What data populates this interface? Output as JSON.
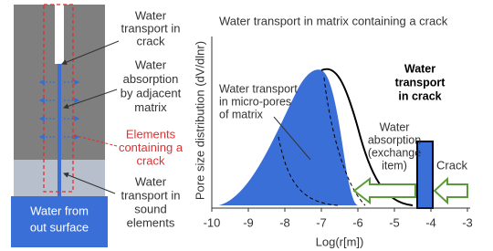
{
  "diagram": {
    "bottom_box": [
      "Water from",
      "out surface"
    ],
    "labels": [
      {
        "lines": [
          "Water",
          "transport in",
          "crack"
        ]
      },
      {
        "lines": [
          "Water",
          "absorption",
          "by adjacent",
          "matrix"
        ]
      },
      {
        "lines": [
          "Elements",
          "containing a",
          "crack"
        ]
      },
      {
        "lines": [
          "Water",
          "transport in",
          "sound",
          "elements"
        ]
      }
    ]
  },
  "chart_data": {
    "type": "schematic",
    "title": "Water transport in matrix containing a crack",
    "ylabel": "Pore size distribution (dV/dlnr)",
    "xlabel": "Log(r[m])",
    "xlim": [
      -10,
      -3
    ],
    "xticks": [
      -10,
      -9,
      -8,
      -7,
      -6,
      -5,
      -4,
      -3
    ],
    "annotations": [
      {
        "lines": [
          "Water transport",
          "in micro-pores",
          "of matrix"
        ]
      },
      {
        "lines": [
          "Water",
          "transport",
          "in crack"
        ]
      },
      {
        "lines": [
          "Water",
          "absorption",
          "(exchange",
          "item)"
        ]
      },
      {
        "lines": [
          "Crack"
        ]
      }
    ]
  }
}
